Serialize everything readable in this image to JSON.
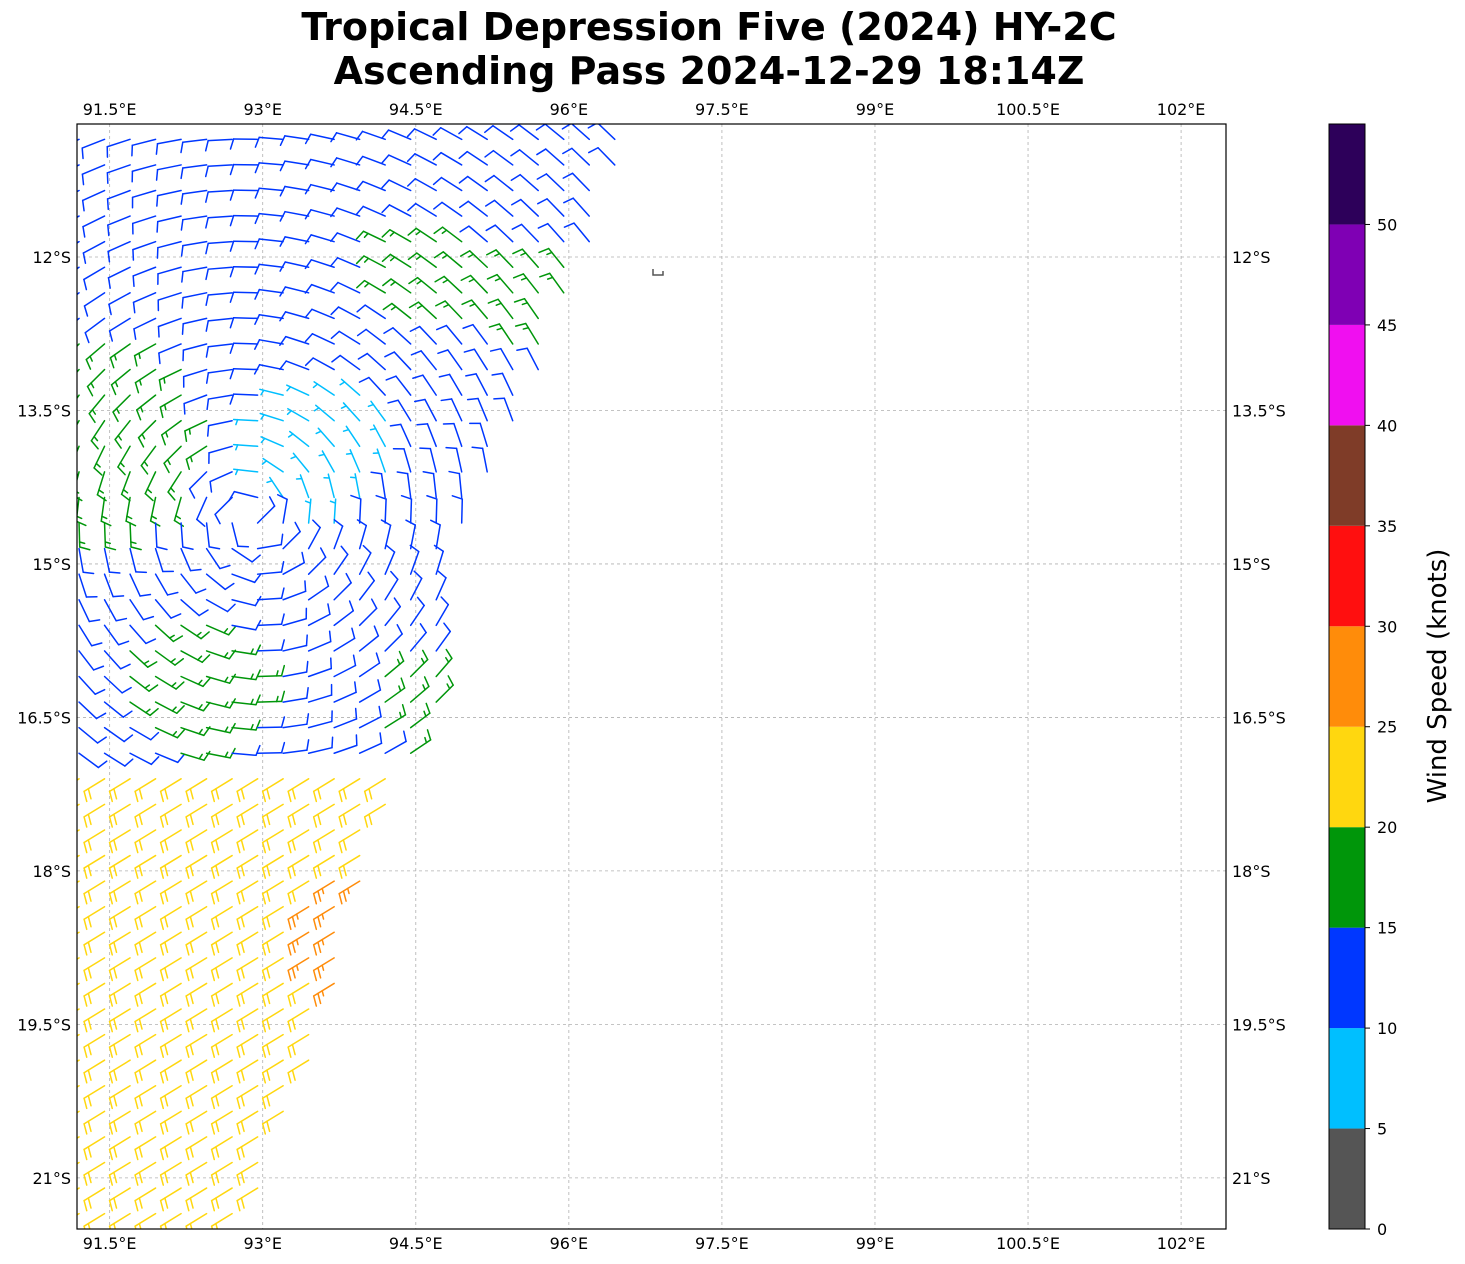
{
  "chart_data": {
    "type": "wind-barb map",
    "title": [
      "Tropical Depression Five (2024) HY-2C",
      "Ascending Pass 2024-12-29 18:14Z"
    ],
    "x_axis": {
      "unit": "degrees east",
      "range": [
        91.18,
        102.44
      ],
      "ticks": [
        91.5,
        93,
        94.5,
        96,
        97.5,
        99,
        100.5,
        102
      ],
      "tick_labels": [
        "91.5°E",
        "93°E",
        "94.5°E",
        "96°E",
        "97.5°E",
        "99°E",
        "100.5°E",
        "102°E"
      ]
    },
    "y_axis": {
      "unit": "degrees south",
      "range": [
        10.7,
        21.5
      ],
      "ticks": [
        12,
        13.5,
        15,
        16.5,
        18,
        19.5,
        21
      ],
      "tick_labels": [
        "12°S",
        "13.5°S",
        "15°S",
        "16.5°S",
        "18°S",
        "19.5°S",
        "21°S"
      ]
    },
    "grid": true,
    "colorbar": {
      "label": "Wind Speed (knots)",
      "bounds": [
        0,
        5,
        10,
        15,
        20,
        25,
        30,
        35,
        40,
        45,
        50,
        55
      ],
      "tick_labels": [
        "0",
        "5",
        "10",
        "15",
        "20",
        "25",
        "30",
        "35",
        "40",
        "45",
        "50"
      ],
      "colors": [
        "#555555",
        "#00bfff",
        "#0037ff",
        "#00960a",
        "#ffd70f",
        "#ff8c0a",
        "#ff0f0f",
        "#7f3c28",
        "#f00ff0",
        "#7f00b4",
        "#2d005a"
      ]
    },
    "circulation_center": {
      "lon": 92.9,
      "lat": 14.55
    },
    "barb_grid": {
      "lon": [
        91.2,
        91.45,
        91.7,
        91.95,
        92.2,
        92.45,
        92.7,
        92.95,
        93.2,
        93.45,
        93.7,
        93.95,
        94.2,
        94.45,
        94.7,
        94.95,
        95.2,
        95.45,
        95.7,
        95.95,
        96.2,
        96.45
      ],
      "lat": [
        10.85,
        11.1,
        11.35,
        11.6,
        11.85,
        12.1,
        12.35,
        12.6,
        12.85,
        13.1,
        13.35,
        13.6,
        13.85,
        14.1,
        14.35,
        14.6,
        14.85,
        15.1,
        15.35,
        15.6,
        15.85,
        16.1,
        16.35,
        16.6,
        16.85,
        17.1,
        17.35,
        17.6,
        17.85,
        18.1,
        18.35,
        18.6,
        18.85,
        19.1,
        19.35,
        19.6,
        19.85,
        20.1,
        20.35,
        20.6,
        20.85,
        21.1,
        21.35
      ]
    },
    "swath_east_edge": [
      [
        10.7,
        96.6
      ],
      [
        11.5,
        96.4
      ],
      [
        12.4,
        96.0
      ],
      [
        13.5,
        95.6
      ],
      [
        14.5,
        95.0
      ],
      [
        15.5,
        94.7
      ],
      [
        16.5,
        94.7
      ],
      [
        17.5,
        94.2
      ],
      [
        18.5,
        93.9
      ],
      [
        19.5,
        93.6
      ],
      [
        20.5,
        93.2
      ],
      [
        21.5,
        92.8
      ]
    ],
    "speed_regions": [
      {
        "name": "light core",
        "lon": 93.6,
        "lat": 13.9,
        "radius_deg": 0.75,
        "knots": 8
      },
      {
        "name": "west band",
        "lon": 91.5,
        "lat": 13.7,
        "radius_deg": 1.0,
        "knots": 17
      },
      {
        "name": "north band",
        "lon": 94.6,
        "lat": 12.2,
        "radius_deg": 0.55,
        "knots": 17
      },
      {
        "name": "northeast band",
        "lon": 95.6,
        "lat": 12.4,
        "radius_deg": 0.5,
        "knots": 17
      },
      {
        "name": "southwest band",
        "lon": 92.3,
        "lat": 16.2,
        "radius_deg": 0.7,
        "knots": 17
      },
      {
        "name": "southeast band",
        "lon": 94.5,
        "lat": 16.4,
        "radius_deg": 0.5,
        "knots": 17
      },
      {
        "name": "southern flow",
        "lat_min": 16.9,
        "knots": 22
      },
      {
        "name": "southern max",
        "lon": 93.9,
        "lat": 18.6,
        "radius_deg": 0.65,
        "knots": 27
      }
    ]
  }
}
